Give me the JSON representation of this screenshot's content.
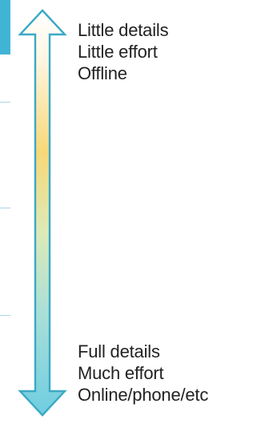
{
  "scale": {
    "gradient_colors": {
      "top": "#ffffff",
      "middle": "#f8d878",
      "lower": "#bfe3c8",
      "bottom": "#6fcde0"
    },
    "outline_color": "#3aa9c6",
    "top_labels": [
      "Little details",
      "Little effort",
      "Offline"
    ],
    "bottom_labels": [
      "Full details",
      "Much effort",
      "Online/phone/etc"
    ]
  },
  "left_edge": {
    "accent_color": "#40b4d4"
  }
}
